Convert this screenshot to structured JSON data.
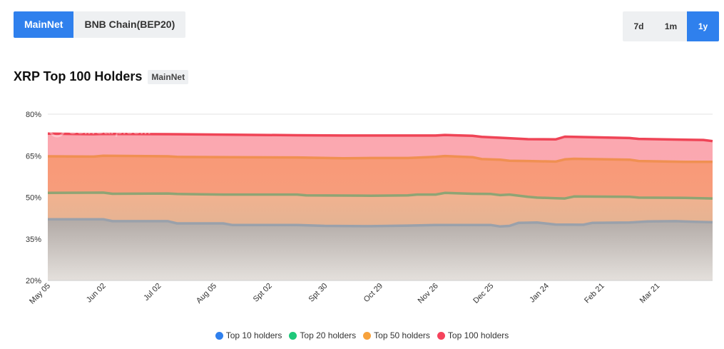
{
  "network_tabs": [
    {
      "label": "MainNet",
      "active": true
    },
    {
      "label": "BNB Chain(BEP20)",
      "active": false
    }
  ],
  "range_tabs": [
    {
      "label": "7d",
      "active": false
    },
    {
      "label": "1m",
      "active": false
    },
    {
      "label": "1y",
      "active": true
    }
  ],
  "title": "XRP Top 100 Holders",
  "badge": "MainNet",
  "watermark": "CoinCarp.com",
  "chart_data": {
    "type": "area",
    "title": "XRP Top 100 Holders",
    "ylim": [
      20,
      80
    ],
    "yticks": [
      20,
      35,
      50,
      65,
      80
    ],
    "ytick_labels": [
      "20%",
      "35%",
      "50%",
      "65%",
      "80%"
    ],
    "x_ticks": [
      "May 05",
      "Jun 02",
      "Jul 02",
      "Aug 05",
      "Spt 02",
      "Spt 30",
      "Oct 29",
      "Nov 26",
      "Dec 25",
      "Jan 24",
      "Feb 21",
      "Mar 21"
    ],
    "x_steps": 72,
    "series": [
      {
        "name": "Top 10 holders",
        "legend_color": "#2f80ed",
        "line_color": "#9aa1ab",
        "fill": [
          "#b2aaa6",
          "#e4e0dc"
        ],
        "points": [
          [
            0,
            42.1
          ],
          [
            6,
            42.1
          ],
          [
            7,
            41.4
          ],
          [
            13,
            41.4
          ],
          [
            14,
            40.6
          ],
          [
            19,
            40.6
          ],
          [
            20,
            40.0
          ],
          [
            27,
            40.0
          ],
          [
            30,
            39.7
          ],
          [
            35,
            39.6
          ],
          [
            39,
            39.8
          ],
          [
            42,
            40.0
          ],
          [
            48,
            40.0
          ],
          [
            49,
            39.5
          ],
          [
            50,
            39.7
          ],
          [
            51,
            40.8
          ],
          [
            53,
            40.9
          ],
          [
            55,
            40.2
          ],
          [
            58,
            40.1
          ],
          [
            59,
            40.8
          ],
          [
            63,
            40.9
          ],
          [
            65,
            41.3
          ],
          [
            68,
            41.4
          ],
          [
            70,
            41.2
          ],
          [
            72,
            41.0
          ]
        ]
      },
      {
        "name": "Top 20 holders",
        "legend_color": "#1ec87a",
        "line_color": "#8fa474",
        "fill": [
          "#f2b28f",
          "#cdb59a"
        ],
        "points": [
          [
            0,
            51.6
          ],
          [
            6,
            51.7
          ],
          [
            7,
            51.3
          ],
          [
            13,
            51.4
          ],
          [
            14,
            51.2
          ],
          [
            19,
            51.0
          ],
          [
            27,
            51.0
          ],
          [
            28,
            50.7
          ],
          [
            35,
            50.6
          ],
          [
            39,
            50.7
          ],
          [
            40,
            51.0
          ],
          [
            42,
            51.0
          ],
          [
            43,
            51.6
          ],
          [
            46,
            51.3
          ],
          [
            48,
            51.2
          ],
          [
            49,
            50.8
          ],
          [
            50,
            51.0
          ],
          [
            52,
            50.2
          ],
          [
            53,
            49.9
          ],
          [
            55,
            49.7
          ],
          [
            56,
            49.6
          ],
          [
            57,
            50.3
          ],
          [
            63,
            50.2
          ],
          [
            64,
            49.9
          ],
          [
            69,
            49.8
          ],
          [
            72,
            49.6
          ]
        ]
      },
      {
        "name": "Top 50 holders",
        "legend_color": "#f7a23c",
        "line_color": "#f09052",
        "fill": [
          "#f89977",
          "#f5a486"
        ],
        "points": [
          [
            0,
            64.8
          ],
          [
            5,
            64.7
          ],
          [
            6,
            65.0
          ],
          [
            13,
            64.8
          ],
          [
            14,
            64.6
          ],
          [
            20,
            64.5
          ],
          [
            27,
            64.4
          ],
          [
            32,
            64.1
          ],
          [
            35,
            64.2
          ],
          [
            39,
            64.2
          ],
          [
            42,
            64.6
          ],
          [
            43,
            64.9
          ],
          [
            46,
            64.5
          ],
          [
            47,
            63.8
          ],
          [
            49,
            63.6
          ],
          [
            50,
            63.2
          ],
          [
            52,
            63.1
          ],
          [
            55,
            62.9
          ],
          [
            56,
            63.7
          ],
          [
            57,
            63.9
          ],
          [
            63,
            63.6
          ],
          [
            64,
            63.1
          ],
          [
            69,
            62.8
          ],
          [
            72,
            62.8
          ]
        ]
      },
      {
        "name": "Top 100 holders",
        "legend_color": "#f5435c",
        "line_color": "#ef4456",
        "fill": [
          "#fba7b0",
          "#fcb0b4"
        ],
        "points": [
          [
            0,
            73.0
          ],
          [
            5,
            72.8
          ],
          [
            6,
            72.9
          ],
          [
            13,
            72.8
          ],
          [
            20,
            72.6
          ],
          [
            27,
            72.4
          ],
          [
            32,
            72.3
          ],
          [
            35,
            72.3
          ],
          [
            39,
            72.3
          ],
          [
            42,
            72.3
          ],
          [
            43,
            72.5
          ],
          [
            46,
            72.2
          ],
          [
            47,
            71.8
          ],
          [
            49,
            71.5
          ],
          [
            52,
            71.0
          ],
          [
            55,
            70.9
          ],
          [
            56,
            71.9
          ],
          [
            57,
            71.8
          ],
          [
            63,
            71.4
          ],
          [
            64,
            71.1
          ],
          [
            69,
            70.8
          ],
          [
            71,
            70.7
          ],
          [
            72,
            70.3
          ]
        ]
      }
    ]
  }
}
